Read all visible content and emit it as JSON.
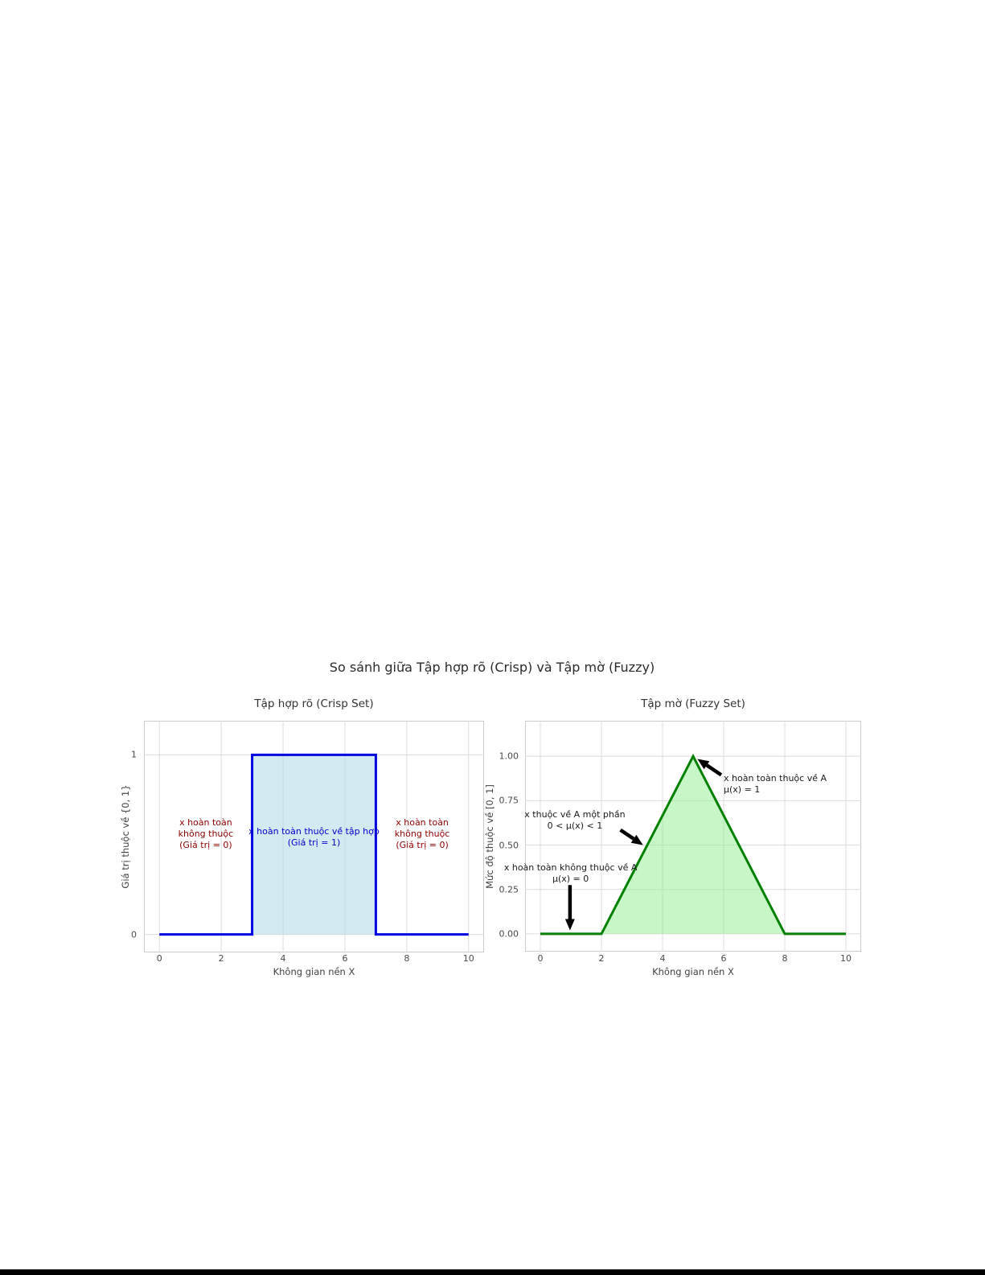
{
  "figure": {
    "title": "So sánh giữa Tập hợp rõ (Crisp) và Tập mờ (Fuzzy)",
    "background": "#ffffff",
    "bottom_bar_color": "#000000"
  },
  "chart_data": [
    {
      "type": "line",
      "title": "Tập hợp rõ (Crisp Set)",
      "xlabel": "Không gian nền X",
      "ylabel": "Giá trị thuộc về {0, 1}",
      "series": [
        {
          "name": "crisp-membership",
          "x": [
            0,
            3,
            3,
            7,
            7,
            10
          ],
          "y": [
            0,
            0,
            1,
            1,
            0,
            0
          ]
        }
      ],
      "line_color": "#0000E0",
      "fill_color": "rgba(173,216,230,0.55)",
      "line_width": 3,
      "xticks": [
        0,
        2,
        4,
        6,
        8,
        10
      ],
      "xtick_labels": [
        "0",
        "2",
        "4",
        "6",
        "8",
        "10"
      ],
      "yticks": [
        0,
        1
      ],
      "ytick_labels": [
        "0",
        "1"
      ],
      "xlim": [
        -0.5,
        10.5
      ],
      "ylim": [
        -0.1,
        1.19
      ],
      "grid": true,
      "annotations": [
        {
          "lines": [
            "x hoàn toàn",
            "không thuộc",
            "(Giá trị = 0)"
          ],
          "x": 1.5,
          "y": 0.56,
          "color": "#8B0000",
          "align": "center"
        },
        {
          "lines": [
            "x hoàn toàn thuộc về tập hợp",
            "(Giá trị = 1)"
          ],
          "x": 5.0,
          "y": 0.54,
          "color": "#0000CC",
          "align": "center"
        },
        {
          "lines": [
            "x hoàn toàn",
            "không thuộc",
            "(Giá trị = 0)"
          ],
          "x": 8.5,
          "y": 0.56,
          "color": "#8B0000",
          "align": "center"
        }
      ],
      "arrows": []
    },
    {
      "type": "area",
      "title": "Tập mờ (Fuzzy Set)",
      "xlabel": "Không gian nền X",
      "ylabel": "Mức độ thuộc về [0, 1]",
      "series": [
        {
          "name": "fuzzy-membership",
          "x": [
            0,
            2,
            5,
            8,
            10
          ],
          "y": [
            0,
            0,
            1,
            0,
            0
          ]
        }
      ],
      "line_color": "#008000",
      "fill_color": "rgba(144,238,144,0.5)",
      "line_width": 3,
      "xticks": [
        0,
        2,
        4,
        6,
        8,
        10
      ],
      "xtick_labels": [
        "0",
        "2",
        "4",
        "6",
        "8",
        "10"
      ],
      "yticks": [
        0,
        0.25,
        0.5,
        0.75,
        1
      ],
      "ytick_labels": [
        "0.00",
        "0.25",
        "0.50",
        "0.75",
        "1.00"
      ],
      "xlim": [
        -0.5,
        10.5
      ],
      "ylim": [
        -0.1,
        1.2
      ],
      "grid": true,
      "annotations": [
        {
          "lines": [
            "x hoàn toàn thuộc về A",
            "μ(x) = 1"
          ],
          "x": 6.0,
          "y": 0.84,
          "color": "#1a1a1a",
          "align": "left"
        },
        {
          "lines": [
            "x thuộc về A một phần",
            "0 < μ(x) < 1"
          ],
          "x": 1.13,
          "y": 0.64,
          "color": "#1a1a1a",
          "align": "center"
        },
        {
          "lines": [
            "x hoàn toàn không thuộc về A",
            "μ(x) = 0"
          ],
          "x": 0.99,
          "y": 0.34,
          "color": "#1a1a1a",
          "align": "center"
        }
      ],
      "arrows": [
        {
          "from": [
            5.92,
            0.895
          ],
          "to": [
            5.14,
            0.985
          ]
        },
        {
          "from": [
            2.62,
            0.585
          ],
          "to": [
            3.36,
            0.5
          ]
        },
        {
          "from": [
            0.97,
            0.275
          ],
          "to": [
            0.97,
            0.02
          ]
        }
      ]
    }
  ]
}
